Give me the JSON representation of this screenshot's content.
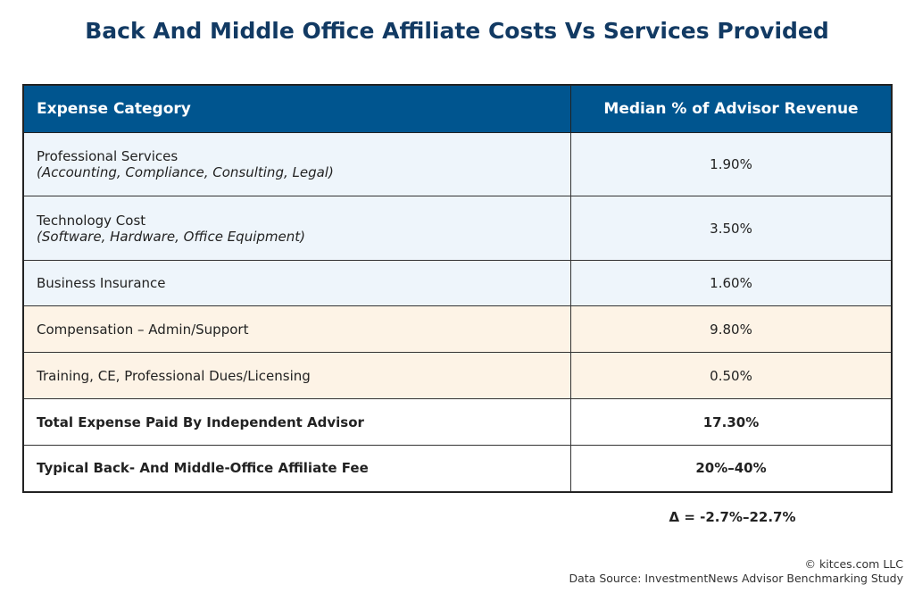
{
  "title": "Back And Middle Office Affiliate Costs Vs Services Provided",
  "colors": {
    "header": "#00558f",
    "title": "#123a63",
    "row_blue": "#eef5fb",
    "row_cream": "#fdf3e6"
  },
  "chart_data": {
    "type": "table",
    "columns": [
      "Expense Category",
      "Median % of Advisor Revenue"
    ],
    "rows": [
      {
        "category": "Professional Services",
        "detail": "(Accounting, Compliance, Consulting, Legal)",
        "value": "1.90%",
        "shade": "blue"
      },
      {
        "category": "Technology Cost",
        "detail": "(Software, Hardware, Office Equipment)",
        "value": "3.50%",
        "shade": "blue"
      },
      {
        "category": "Business Insurance",
        "value": "1.60%",
        "shade": "blue"
      },
      {
        "category": "Compensation – Admin/Support",
        "value": "9.80%",
        "shade": "cream"
      },
      {
        "category": "Training, CE, Professional Dues/Licensing",
        "value": "0.50%",
        "shade": "cream"
      },
      {
        "category": "Total Expense Paid By Independent Advisor",
        "value": "17.30%",
        "shade": "white"
      },
      {
        "category": "Typical Back- And Middle-Office Affiliate Fee",
        "value": "20%–40%",
        "shade": "white"
      }
    ],
    "delta": "Δ = -2.7%–22.7%"
  },
  "footer": {
    "copyright": "© kitces.com LLC",
    "source": "Data Source: InvestmentNews Advisor Benchmarking Study"
  }
}
